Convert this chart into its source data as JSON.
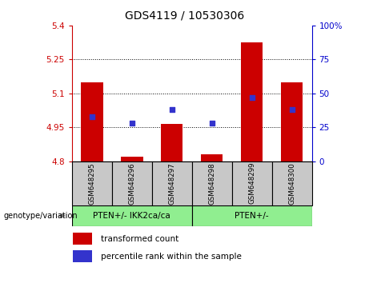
{
  "title": "GDS4119 / 10530306",
  "samples": [
    "GSM648295",
    "GSM648296",
    "GSM648297",
    "GSM648298",
    "GSM648299",
    "GSM648300"
  ],
  "bar_values": [
    5.15,
    4.82,
    4.965,
    4.83,
    5.325,
    5.15
  ],
  "bar_base": 4.8,
  "blue_pct": [
    33,
    28,
    38,
    28,
    47,
    38
  ],
  "ylim_left": [
    4.8,
    5.4
  ],
  "ylim_right": [
    0,
    100
  ],
  "yticks_left": [
    4.8,
    4.95,
    5.1,
    5.25,
    5.4
  ],
  "yticks_right": [
    0,
    25,
    50,
    75,
    100
  ],
  "grid_values": [
    4.95,
    5.1,
    5.25
  ],
  "genotype_labels": [
    "PTEN+/- IKK2ca/ca",
    "PTEN+/-"
  ],
  "bar_color": "#cc0000",
  "blue_color": "#3333cc",
  "bg_color": "#c8c8c8",
  "geno_color": "#90ee90",
  "legend_red": "transformed count",
  "legend_blue": "percentile rank within the sample",
  "left_axis_color": "#cc0000",
  "right_axis_color": "#0000cc",
  "title_fontsize": 10,
  "tick_fontsize": 7.5,
  "label_fontsize": 7.5
}
